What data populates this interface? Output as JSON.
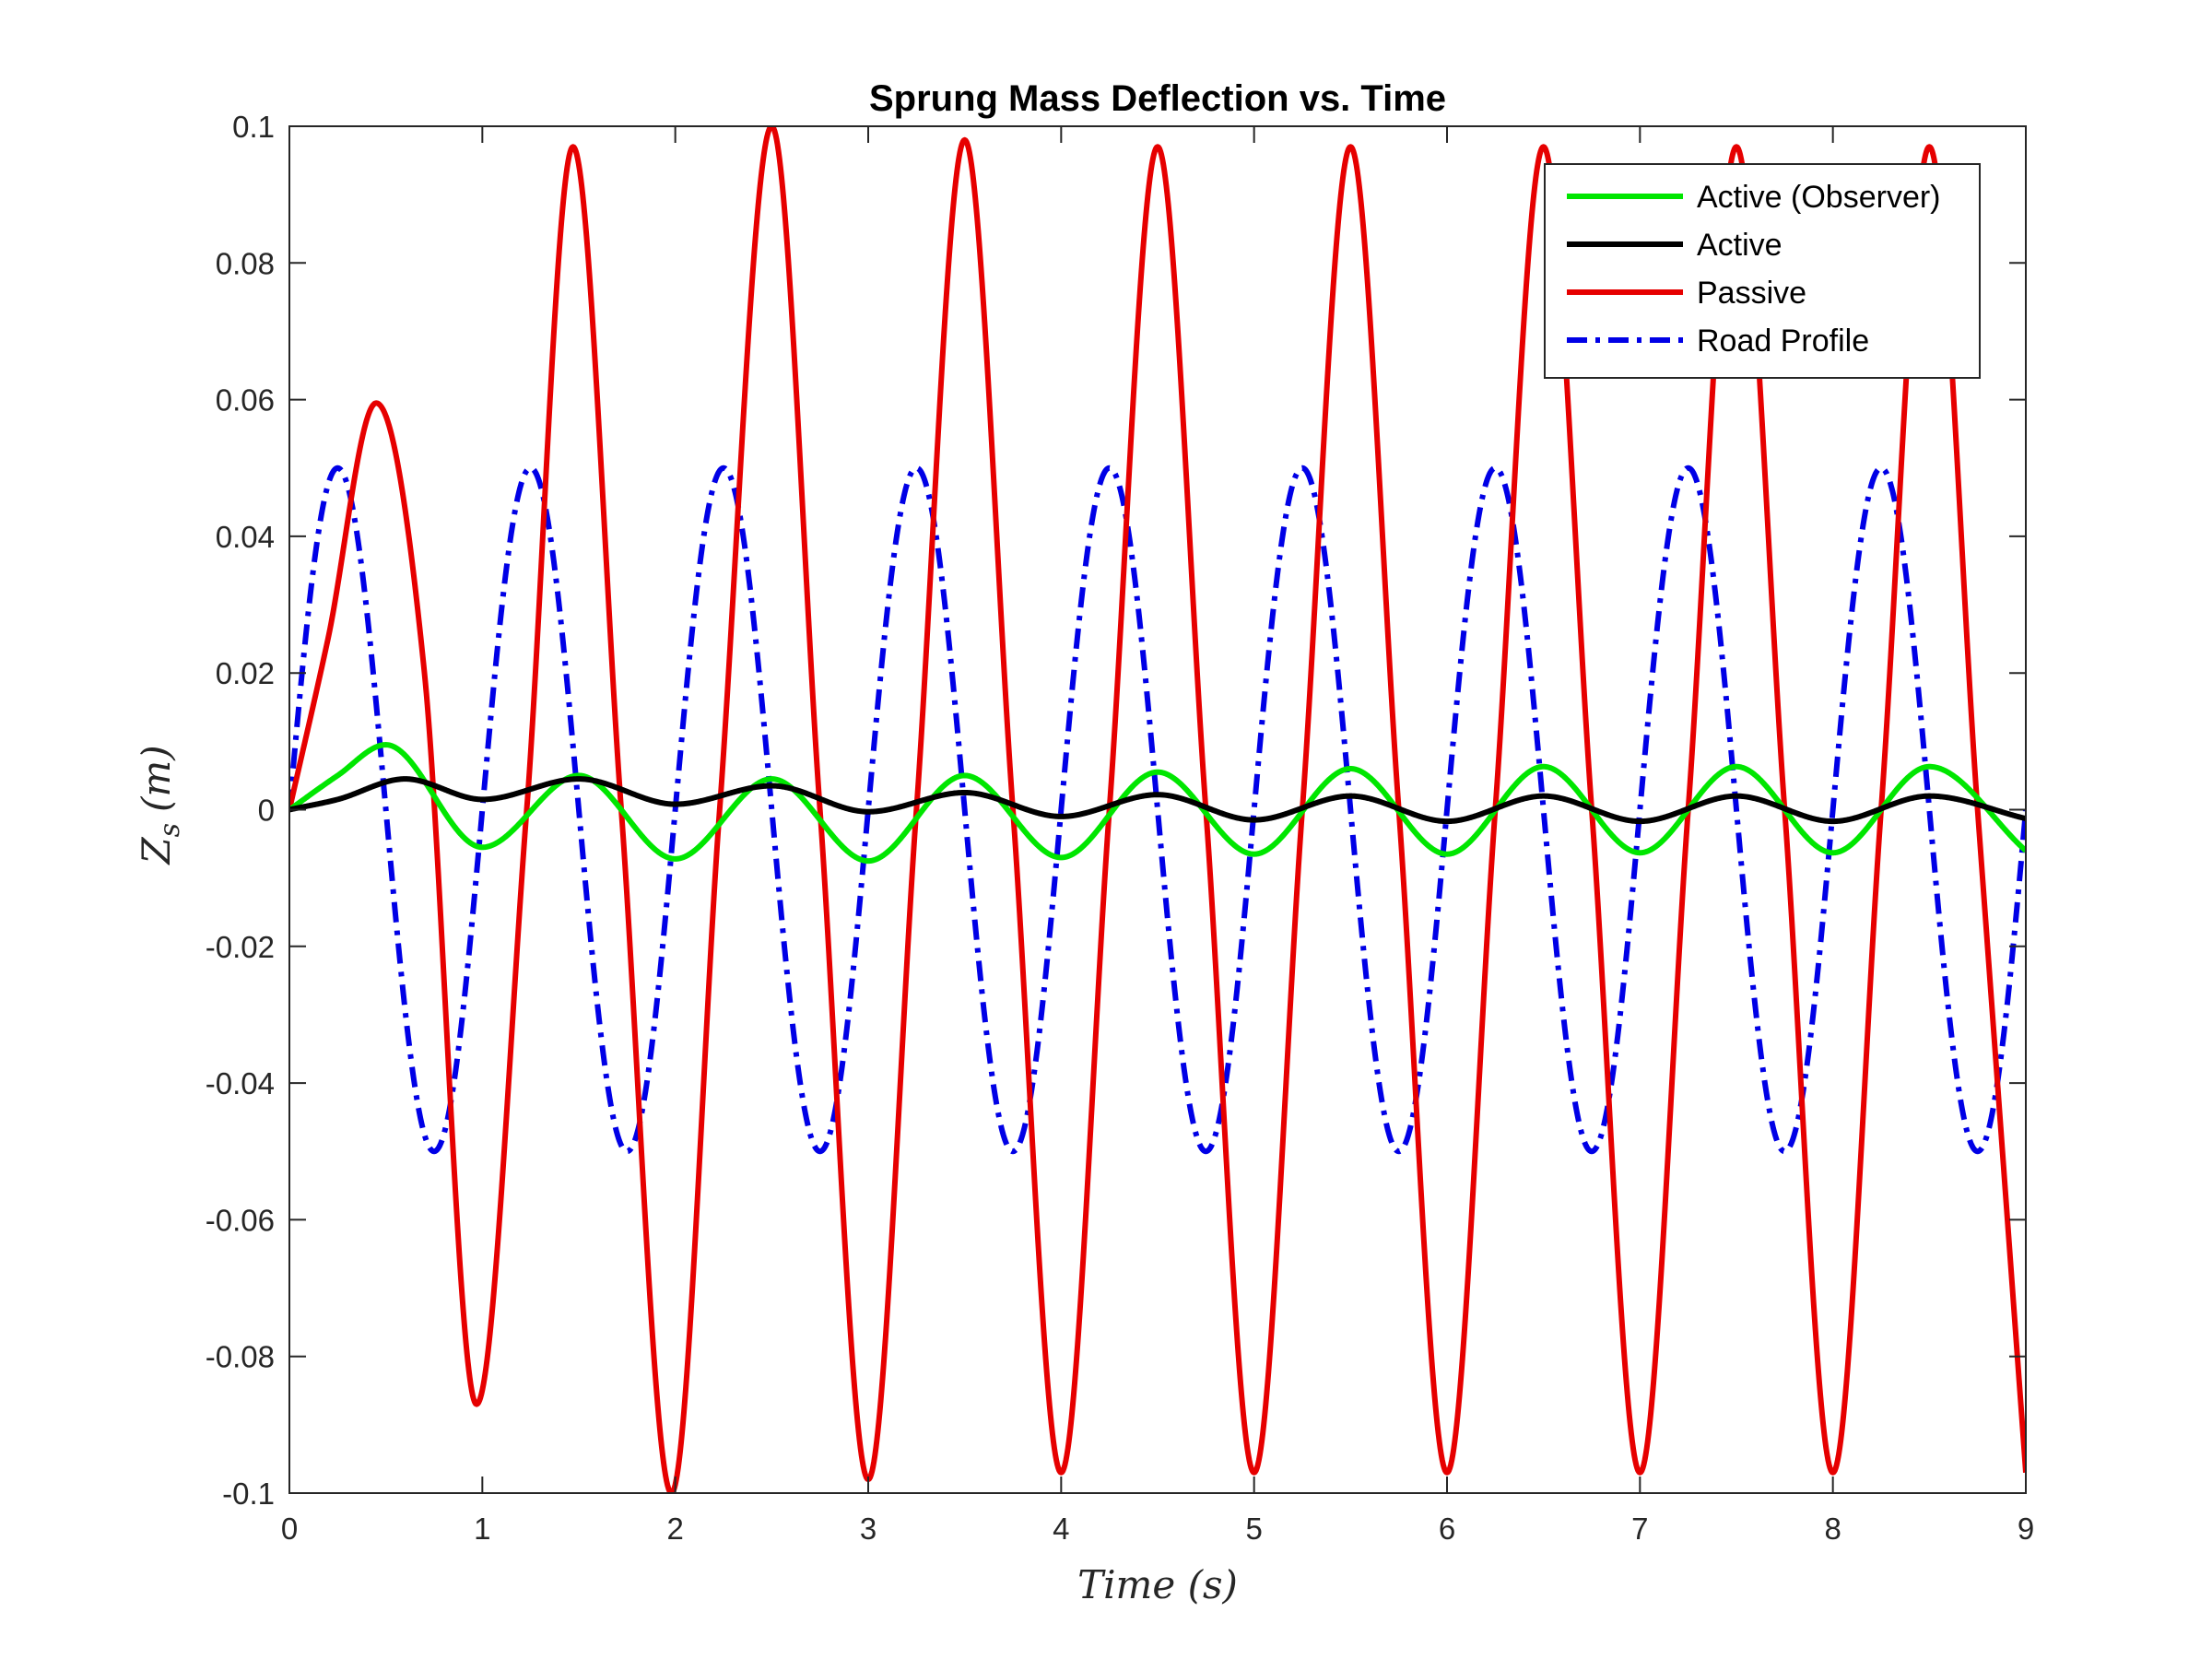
{
  "chart_data": {
    "type": "line",
    "title": "Sprung Mass Deflection vs. Time",
    "xlabel": "Time (s)",
    "ylabel": "Z_s (m)",
    "ylabel_main": "Z",
    "ylabel_sub": "s",
    "ylabel_unit": "(m)",
    "xlim": [
      0,
      9
    ],
    "ylim": [
      -0.1,
      0.1
    ],
    "xticks": [
      "0",
      "1",
      "2",
      "3",
      "4",
      "5",
      "6",
      "7",
      "8",
      "9"
    ],
    "yticks": [
      "-0.1",
      "-0.08",
      "-0.06",
      "-0.04",
      "-0.02",
      "0",
      "0.02",
      "0.04",
      "0.06",
      "0.08",
      "0.1"
    ],
    "grid": false,
    "legend_position": "top-right",
    "series": [
      {
        "name": "Active (Observer)",
        "color": "#00e600",
        "style": "solid",
        "x": [
          0,
          0.25,
          0.5,
          1.0,
          1.5,
          2.0,
          2.5,
          3.0,
          3.5,
          4.0,
          4.5,
          5.0,
          5.5,
          6.0,
          6.5,
          7.0,
          7.5,
          8.0,
          8.5,
          9.0
        ],
        "y": [
          0,
          0.005,
          0.0095,
          -0.0055,
          0.005,
          -0.0072,
          0.0045,
          -0.0075,
          0.005,
          -0.007,
          0.0055,
          -0.0065,
          0.006,
          -0.0065,
          0.0063,
          -0.0063,
          0.0063,
          -0.0063,
          0.0063,
          -0.006
        ]
      },
      {
        "name": "Active",
        "color": "#000000",
        "style": "solid",
        "x": [
          0,
          0.25,
          0.6,
          1.0,
          1.5,
          2.0,
          2.5,
          3.0,
          3.5,
          4.0,
          4.5,
          5.0,
          5.5,
          6.0,
          6.5,
          7.0,
          7.5,
          8.0,
          8.5,
          9.0
        ],
        "y": [
          0,
          0.0015,
          0.0045,
          0.0015,
          0.0045,
          0.0008,
          0.0035,
          -0.0003,
          0.0025,
          -0.001,
          0.0022,
          -0.0015,
          0.002,
          -0.0017,
          0.002,
          -0.0017,
          0.002,
          -0.0017,
          0.002,
          -0.0013
        ]
      },
      {
        "name": "Passive",
        "color": "#e60000",
        "style": "solid",
        "x": [
          0,
          0.2,
          0.45,
          0.7,
          0.97,
          1.23,
          1.47,
          1.72,
          1.98,
          2.23,
          2.5,
          2.75,
          3.0,
          3.25,
          3.5,
          3.75,
          4.0,
          4.25,
          4.5,
          4.75,
          5.0,
          5.25,
          5.5,
          5.75,
          6.0,
          6.25,
          6.5,
          6.75,
          7.0,
          7.25,
          7.5,
          7.75,
          8.0,
          8.25,
          8.5,
          8.75,
          9.0
        ],
        "y": [
          0,
          0.025,
          0.0595,
          0.02,
          -0.087,
          0.0,
          0.097,
          0.0,
          -0.1,
          0.0,
          0.1,
          0.0,
          -0.098,
          0.0,
          0.098,
          0.0,
          -0.097,
          0.0,
          0.097,
          0.0,
          -0.097,
          0.0,
          0.097,
          0.0,
          -0.097,
          0.0,
          0.097,
          0.0,
          -0.097,
          0.0,
          0.097,
          0.0,
          -0.097,
          0.0,
          0.097,
          0.0,
          -0.097
        ]
      },
      {
        "name": "Road Profile",
        "color": "#0000e6",
        "style": "dashdot",
        "amplitude": 0.05,
        "frequency_hz": 1,
        "x": [
          0,
          0.25,
          0.5,
          0.75,
          1.0,
          1.25,
          1.5,
          1.75,
          2.0,
          2.25,
          2.5,
          2.75,
          3.0,
          3.25,
          3.5,
          3.75,
          4.0,
          4.25,
          4.5,
          4.75,
          5.0,
          5.25,
          5.5,
          5.75,
          6.0,
          6.25,
          6.5,
          6.75,
          7.0,
          7.25,
          7.5,
          7.75,
          8.0,
          8.25,
          8.5,
          8.75,
          9.0
        ],
        "y": [
          0,
          0.05,
          0,
          -0.05,
          0,
          0.05,
          0,
          -0.05,
          0,
          0.05,
          0,
          -0.05,
          0,
          0.05,
          0,
          -0.05,
          0,
          0.05,
          0,
          -0.05,
          0,
          0.05,
          0,
          -0.05,
          0,
          0.05,
          0,
          -0.05,
          0,
          0.05,
          0,
          -0.05,
          0,
          0.05,
          0,
          -0.05,
          0
        ]
      }
    ]
  }
}
